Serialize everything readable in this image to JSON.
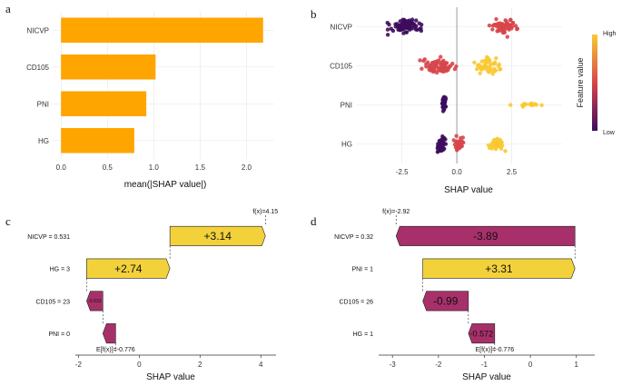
{
  "panel_labels": [
    "a",
    "b",
    "c",
    "d"
  ],
  "colors": {
    "bar": "#FFA500",
    "positive": "#F2D13B",
    "negative": "#A8306A",
    "low": "#3D0C5C",
    "mid": "#D7464A",
    "high": "#F9C932"
  },
  "chart_data": [
    {
      "panel": "a",
      "type": "bar",
      "orientation": "horizontal",
      "categories": [
        "NICVP",
        "CD105",
        "PNI",
        "HG"
      ],
      "values": [
        2.18,
        1.02,
        0.92,
        0.79
      ],
      "xlabel": "mean(|SHAP value|)",
      "xlim": [
        -0.1,
        2.3
      ],
      "xticks": [
        0.0,
        0.5,
        1.0,
        1.5,
        2.0
      ],
      "xtick_labels": [
        "0.0",
        "0.5",
        "1.0",
        "1.5",
        "2.0"
      ]
    },
    {
      "panel": "b",
      "type": "scatter",
      "subtype": "beeswarm",
      "categories": [
        "NICVP",
        "CD105",
        "PNI",
        "HG"
      ],
      "xlabel": "SHAP value",
      "xlim": [
        -4.6,
        4.8
      ],
      "xticks": [
        -2.5,
        0.0,
        2.5
      ],
      "xtick_labels": [
        "-2.5",
        "0.0",
        "2.5"
      ],
      "zero_line": true,
      "legend": {
        "title": "Feature value",
        "high_label": "High",
        "low_label": "Low",
        "position": "right"
      },
      "clusters": [
        {
          "feature": "NICVP",
          "center": -2.4,
          "spread": 1.0,
          "count": 80,
          "color": "low"
        },
        {
          "feature": "NICVP",
          "center": 2.1,
          "spread": 0.8,
          "count": 70,
          "color": "mid"
        },
        {
          "feature": "CD105",
          "center": -0.9,
          "spread": 1.2,
          "count": 70,
          "color": "mid"
        },
        {
          "feature": "CD105",
          "center": 1.4,
          "spread": 0.8,
          "count": 45,
          "color": "high"
        },
        {
          "feature": "PNI",
          "center": -0.6,
          "spread": 0.12,
          "count": 45,
          "color": "low"
        },
        {
          "feature": "PNI",
          "center": 3.1,
          "spread": 0.9,
          "count": 14,
          "color": "high"
        },
        {
          "feature": "HG",
          "center": -0.7,
          "spread": 0.25,
          "count": 50,
          "color": "low"
        },
        {
          "feature": "HG",
          "center": 0.1,
          "spread": 0.3,
          "count": 30,
          "color": "mid"
        },
        {
          "feature": "HG",
          "center": 1.8,
          "spread": 0.5,
          "count": 40,
          "color": "high"
        }
      ]
    },
    {
      "panel": "c",
      "type": "bar",
      "subtype": "waterfall",
      "xlabel": "SHAP value",
      "xlim": [
        -2.1,
        4.5
      ],
      "xticks": [
        -2,
        0,
        2,
        4
      ],
      "xtick_labels": [
        "-2",
        "0",
        "2",
        "4"
      ],
      "base_value": -0.776,
      "base_label": "E[f(x)]=-0.776",
      "fx_value": 4.15,
      "fx_label": "f(x)=4.15",
      "rows": [
        {
          "label": "NICVP = 0.531",
          "start": 1.01,
          "end": 4.15,
          "value_label": "+3.14"
        },
        {
          "label": "HG = 3",
          "start": -1.73,
          "end": 1.01,
          "value_label": "+2.74"
        },
        {
          "label": "CD105 = 23",
          "start": -1.196,
          "end": -1.73,
          "value_label": "-0.533"
        },
        {
          "label": "PNI = 0",
          "start": -0.776,
          "end": -1.196,
          "value_label": ""
        }
      ]
    },
    {
      "panel": "d",
      "type": "bar",
      "subtype": "waterfall",
      "xlabel": "SHAP value",
      "xlim": [
        -3.3,
        1.4
      ],
      "xticks": [
        -3,
        -2,
        -1,
        0,
        1
      ],
      "xtick_labels": [
        "-3",
        "-2",
        "-1",
        "0",
        "1"
      ],
      "base_value": -0.776,
      "base_label": "E[f(x)]=-0.776",
      "fx_value": -2.92,
      "fx_label": "f(x)=-2.92",
      "rows": [
        {
          "label": "NICVP = 0.32",
          "start": 0.97,
          "end": -2.92,
          "value_label": "-3.89"
        },
        {
          "label": "PNI = 1",
          "start": -2.34,
          "end": 0.97,
          "value_label": "+3.31"
        },
        {
          "label": "CD105 = 26",
          "start": -1.348,
          "end": -2.34,
          "value_label": "-0.99"
        },
        {
          "label": "HG = 1",
          "start": -0.776,
          "end": -1.348,
          "value_label": "-0.572"
        }
      ]
    }
  ]
}
